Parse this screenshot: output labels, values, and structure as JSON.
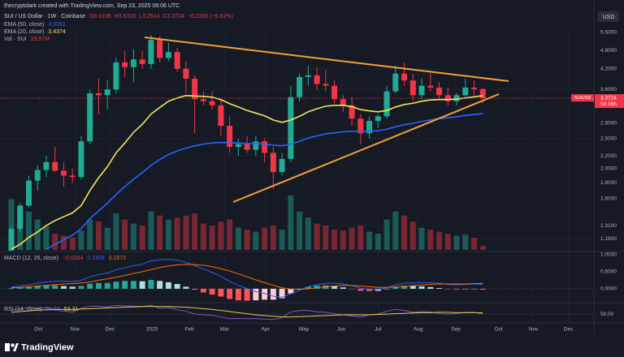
{
  "header": {
    "watermark": "thecryptolark created with TradingView.com, Sep 23, 2025 08:06 UTC",
    "currency": "USD",
    "logo": "TradingView"
  },
  "chart_data": [
    {
      "type": "candlestick",
      "title": "SUI / US Dollar · 1W · Coinbase",
      "ohlc_labels": [
        "O3.6106",
        "H3.6315",
        "L3.2514",
        "C3.3724",
        "−0.2390 (−6.62%)"
      ],
      "xlim": [
        -1.3,
        65.7
      ],
      "xticks": [
        {
          "value": 3.1,
          "label": "Oct"
        },
        {
          "value": 7.3,
          "label": "Nov"
        },
        {
          "value": 11.3,
          "label": "Dec"
        },
        {
          "value": 16.1,
          "label": "2025"
        },
        {
          "value": 20.4,
          "label": "Feb"
        },
        {
          "value": 24.4,
          "label": "Mar"
        },
        {
          "value": 29.1,
          "label": "Apr"
        },
        {
          "value": 33.5,
          "label": "May"
        },
        {
          "value": 37.8,
          "label": "Jun"
        },
        {
          "value": 42.0,
          "label": "Jul"
        },
        {
          "value": 46.6,
          "label": "Aug"
        },
        {
          "value": 50.9,
          "label": "Sep"
        },
        {
          "value": 55.8,
          "label": "Oct"
        },
        {
          "value": 59.8,
          "label": "Nov"
        },
        {
          "value": 63.8,
          "label": "Dec"
        }
      ],
      "ylim": [
        1.094,
        5.7
      ],
      "log_scale": true,
      "yticks": [
        {
          "value": 5.5,
          "label": "5.5000"
        },
        {
          "value": 4.8,
          "label": "4.8000"
        },
        {
          "value": 4.2,
          "label": "4.2000"
        },
        {
          "value": 3.6,
          "label": "3.6000"
        },
        {
          "value": 2.8,
          "label": "2.8000"
        },
        {
          "value": 2.5,
          "label": "2.5000"
        },
        {
          "value": 2.2,
          "label": "2.2000"
        },
        {
          "value": 2.0,
          "label": "2.0000"
        },
        {
          "value": 1.8,
          "label": "1.8000"
        },
        {
          "value": 1.6,
          "label": "1.6000"
        },
        {
          "value": 1.31,
          "label": "1.3100"
        },
        {
          "value": 1.19,
          "label": "1.1900"
        }
      ],
      "grid": true,
      "up_color": "#22ab94",
      "down_color": "#f23645",
      "candles": {
        "open": [
          0.98,
          1.28,
          1.52,
          1.83,
          1.98,
          2.1,
          1.97,
          1.9,
          1.88,
          2.45,
          3.5,
          3.45,
          3.6,
          4.4,
          4.25,
          4.5,
          4.35,
          5.2,
          4.55,
          4.75,
          4.2,
          3.9,
          3.35,
          3.3,
          3.2,
          2.75,
          2.35,
          2.4,
          2.3,
          2.45,
          2.25,
          1.95,
          2.15,
          3.4,
          3.95,
          4.0,
          3.75,
          3.7,
          3.35,
          3.2,
          2.9,
          2.6,
          2.85,
          2.95,
          3.55,
          4.05,
          3.85,
          3.45,
          3.7,
          3.65,
          3.45,
          3.3,
          3.45,
          3.65,
          3.6106
        ],
        "high": [
          1.3,
          1.55,
          1.9,
          2.05,
          2.2,
          2.35,
          2.1,
          2.0,
          2.55,
          3.6,
          3.9,
          3.85,
          4.55,
          4.8,
          4.85,
          4.8,
          5.4,
          5.35,
          5.1,
          4.9,
          4.45,
          4.0,
          3.55,
          3.55,
          3.35,
          2.95,
          2.5,
          2.55,
          2.55,
          2.5,
          2.35,
          2.25,
          3.7,
          4.05,
          4.3,
          4.25,
          4.15,
          3.85,
          3.45,
          3.4,
          3.0,
          2.95,
          3.0,
          3.7,
          4.3,
          4.4,
          4.05,
          3.9,
          4.05,
          3.8,
          3.65,
          3.5,
          3.9,
          3.85,
          3.6315
        ],
        "low": [
          0.95,
          1.25,
          1.5,
          1.7,
          1.88,
          1.95,
          1.75,
          1.8,
          1.85,
          2.4,
          3.0,
          3.1,
          3.5,
          3.95,
          3.8,
          4.2,
          4.2,
          4.4,
          4.45,
          4.1,
          3.5,
          2.6,
          3.2,
          3.1,
          2.55,
          2.25,
          2.2,
          2.25,
          2.2,
          2.1,
          1.72,
          1.9,
          2.1,
          3.3,
          3.7,
          3.6,
          3.55,
          3.25,
          3.05,
          2.75,
          2.4,
          2.5,
          2.7,
          2.9,
          3.5,
          3.7,
          3.3,
          3.35,
          3.55,
          3.35,
          3.2,
          3.2,
          3.4,
          3.45,
          3.2514
        ],
        "close": [
          1.28,
          1.52,
          1.83,
          1.98,
          2.1,
          1.97,
          1.9,
          1.88,
          2.45,
          3.5,
          3.45,
          3.6,
          4.4,
          4.25,
          4.5,
          4.35,
          5.2,
          4.55,
          4.75,
          4.2,
          3.9,
          3.35,
          3.3,
          3.2,
          2.75,
          2.35,
          2.4,
          2.3,
          2.45,
          2.25,
          1.95,
          2.15,
          3.4,
          3.95,
          4.0,
          3.75,
          3.7,
          3.35,
          3.2,
          2.9,
          2.6,
          2.85,
          2.95,
          3.55,
          4.05,
          3.85,
          3.45,
          3.7,
          3.65,
          3.45,
          3.3,
          3.45,
          3.65,
          3.61,
          3.3724
        ]
      },
      "series": [
        {
          "name": "EMA (50, close)",
          "value_label": "3.0091",
          "color": "#2962ff",
          "values": [
            null,
            null,
            null,
            null,
            1.1,
            1.14,
            1.18,
            1.22,
            1.28,
            1.38,
            1.46,
            1.55,
            1.65,
            1.75,
            1.85,
            1.94,
            2.05,
            2.14,
            2.22,
            2.28,
            2.33,
            2.37,
            2.4,
            2.42,
            2.43,
            2.42,
            2.42,
            2.41,
            2.41,
            2.4,
            2.38,
            2.37,
            2.4,
            2.45,
            2.51,
            2.55,
            2.59,
            2.61,
            2.63,
            2.64,
            2.64,
            2.64,
            2.65,
            2.68,
            2.73,
            2.77,
            2.8,
            2.84,
            2.87,
            2.9,
            2.92,
            2.94,
            2.97,
            2.99,
            3.0091
          ]
        },
        {
          "name": "EMA (20, close)",
          "value_label": "3.4374",
          "color": "#f5e35a",
          "values": [
            1.1,
            1.14,
            1.2,
            1.25,
            1.31,
            1.36,
            1.4,
            1.44,
            1.52,
            1.7,
            1.87,
            2.03,
            2.25,
            2.42,
            2.62,
            2.78,
            3.0,
            3.15,
            3.3,
            3.38,
            3.44,
            3.43,
            3.42,
            3.4,
            3.34,
            3.24,
            3.16,
            3.08,
            3.02,
            2.96,
            2.87,
            2.82,
            2.87,
            2.95,
            3.05,
            3.12,
            3.18,
            3.2,
            3.2,
            3.17,
            3.1,
            3.07,
            3.05,
            3.08,
            3.16,
            3.22,
            3.25,
            3.3,
            3.33,
            3.34,
            3.34,
            3.35,
            3.38,
            3.41,
            3.4374
          ]
        }
      ],
      "volume": {
        "name": "Vol · SUI",
        "value_label": "19.97M",
        "ylim": [
          0,
          1100
        ],
        "values": [
          250,
          210,
          190,
          150,
          115,
          80,
          70,
          60,
          95,
          150,
          140,
          110,
          180,
          150,
          130,
          120,
          190,
          170,
          150,
          160,
          170,
          180,
          130,
          120,
          140,
          150,
          110,
          100,
          90,
          110,
          120,
          100,
          270,
          190,
          160,
          130,
          120,
          100,
          95,
          110,
          120,
          90,
          80,
          150,
          190,
          170,
          140,
          110,
          100,
          90,
          80,
          70,
          75,
          60,
          19.97
        ]
      },
      "symbol_tag": "SUIUSD",
      "last_price_label": "3.3724",
      "countdown": "5d 16h"
    },
    {
      "type": "macd",
      "title": "MACD (12, 26, close)",
      "ylim": [
        -0.36,
        1.07
      ],
      "yticks": [
        {
          "value": 1,
          "label": "1.0000"
        },
        {
          "value": 0.5,
          "label": "0.5000"
        },
        {
          "value": 0,
          "label": "0.0000"
        }
      ],
      "histogram": {
        "value_label": "−0.0264",
        "values": [
          0.02,
          0.04,
          0.06,
          0.08,
          0.1,
          0.1,
          0.08,
          0.06,
          0.08,
          0.15,
          0.17,
          0.17,
          0.21,
          0.23,
          0.23,
          0.22,
          0.26,
          0.23,
          0.19,
          0.14,
          0.06,
          -0.03,
          -0.11,
          -0.17,
          -0.23,
          -0.3,
          -0.34,
          -0.35,
          -0.34,
          -0.32,
          -0.32,
          -0.28,
          -0.14,
          -0.02,
          0.06,
          0.09,
          0.1,
          0.08,
          0.04,
          -0.01,
          -0.06,
          -0.07,
          -0.06,
          -0.01,
          0.06,
          0.09,
          0.08,
          0.07,
          0.05,
          0.02,
          -0.01,
          -0.02,
          -0.01,
          -0.01,
          -0.0264
        ]
      },
      "series": [
        {
          "value_label": "0.1308",
          "color": "#2962ff",
          "values": [
            0.05,
            0.08,
            0.12,
            0.16,
            0.2,
            0.22,
            0.22,
            0.21,
            0.25,
            0.35,
            0.42,
            0.46,
            0.55,
            0.62,
            0.68,
            0.72,
            0.82,
            0.85,
            0.86,
            0.84,
            0.78,
            0.68,
            0.58,
            0.48,
            0.36,
            0.22,
            0.1,
            0.0,
            -0.08,
            -0.14,
            -0.22,
            -0.25,
            -0.15,
            -0.04,
            0.06,
            0.12,
            0.16,
            0.16,
            0.14,
            0.09,
            0.02,
            -0.01,
            -0.02,
            0.03,
            0.11,
            0.16,
            0.17,
            0.18,
            0.18,
            0.16,
            0.13,
            0.12,
            0.13,
            0.14,
            0.1308
          ]
        },
        {
          "value_label": "0.1572",
          "color": "#ff6d00",
          "values": [
            0.03,
            0.04,
            0.06,
            0.08,
            0.1,
            0.12,
            0.14,
            0.15,
            0.17,
            0.2,
            0.25,
            0.29,
            0.34,
            0.39,
            0.45,
            0.5,
            0.56,
            0.62,
            0.67,
            0.7,
            0.72,
            0.71,
            0.69,
            0.65,
            0.59,
            0.52,
            0.44,
            0.35,
            0.26,
            0.18,
            0.1,
            0.03,
            -0.01,
            -0.02,
            0.0,
            0.03,
            0.06,
            0.08,
            0.1,
            0.1,
            0.08,
            0.06,
            0.04,
            0.04,
            0.05,
            0.07,
            0.09,
            0.11,
            0.13,
            0.14,
            0.14,
            0.14,
            0.14,
            0.15,
            0.1572
          ]
        }
      ]
    },
    {
      "type": "rsi",
      "title": "RSI (14, close)",
      "ylim": [
        30,
        75
      ],
      "yticks": [
        {
          "value": 50,
          "label": "50.00"
        }
      ],
      "series": [
        {
          "value_label": "50.59",
          "color": "#7e57c2",
          "values": [
            60,
            65,
            68,
            66,
            68,
            62,
            58,
            56,
            66,
            72,
            72,
            70,
            74,
            73,
            72,
            71,
            74,
            66,
            68,
            62,
            58,
            50,
            48,
            47,
            42,
            37,
            38,
            37,
            38,
            36,
            35,
            40,
            56,
            60,
            60,
            56,
            55,
            51,
            48,
            45,
            42,
            48,
            50,
            58,
            63,
            60,
            55,
            57,
            56,
            52,
            50,
            52,
            55,
            55,
            50.59
          ]
        },
        {
          "value_label": "53.31",
          "color": "#f0c84a",
          "values": [
            55,
            57,
            59,
            61,
            62,
            63,
            63,
            63,
            64,
            65,
            66,
            67,
            68,
            69,
            70,
            71,
            71,
            71,
            71,
            70,
            69,
            67,
            65,
            63,
            60,
            57,
            54,
            51,
            48,
            46,
            44,
            42,
            42,
            43,
            44,
            45,
            46,
            47,
            48,
            48,
            48,
            48,
            49,
            50,
            51,
            52,
            53,
            54,
            54,
            55,
            55,
            54,
            54,
            54,
            53.31
          ]
        }
      ]
    }
  ]
}
